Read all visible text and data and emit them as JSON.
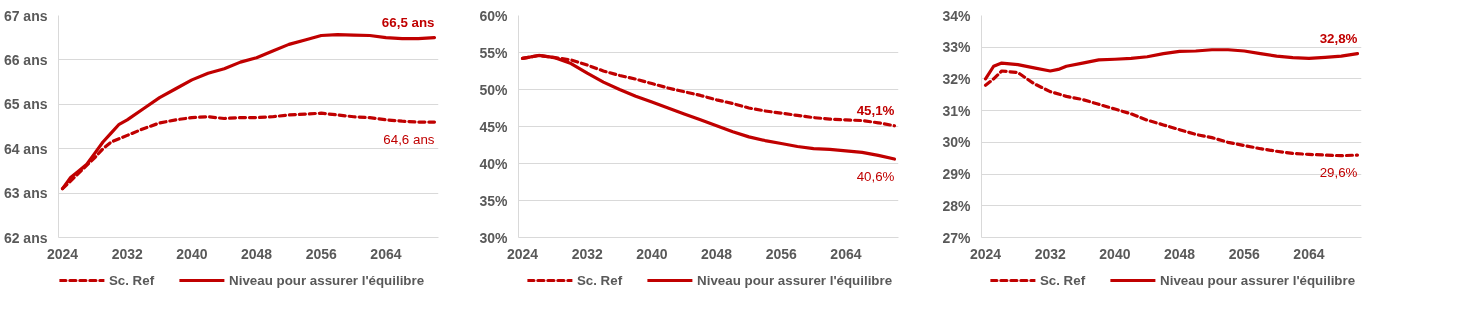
{
  "chart_data": [
    {
      "type": "line",
      "xlim": [
        2023.5,
        2070.5
      ],
      "xticks": [
        2024,
        2032,
        2040,
        2048,
        2056,
        2064
      ],
      "ylim": [
        62,
        67
      ],
      "yticks": [
        {
          "value": 62,
          "label": "62 ans"
        },
        {
          "value": 63,
          "label": "63 ans"
        },
        {
          "value": 64,
          "label": "64 ans"
        },
        {
          "value": 65,
          "label": "65 ans"
        },
        {
          "value": 66,
          "label": "66 ans"
        },
        {
          "value": 67,
          "label": "67 ans"
        }
      ],
      "grid": "y",
      "legend": "bottom",
      "series": [
        {
          "name": "Sc. Ref",
          "color": "#c00000",
          "line_style": "dashed",
          "x": [
            2024,
            2026,
            2028,
            2029,
            2030,
            2032,
            2034,
            2036,
            2038,
            2040,
            2042,
            2044,
            2046,
            2048,
            2050,
            2052,
            2054,
            2056,
            2058,
            2060,
            2062,
            2064,
            2066,
            2068,
            2070
          ],
          "values": [
            63.1,
            63.45,
            63.8,
            64.0,
            64.15,
            64.3,
            64.45,
            64.58,
            64.65,
            64.7,
            64.72,
            64.68,
            64.7,
            64.7,
            64.72,
            64.76,
            64.78,
            64.8,
            64.76,
            64.72,
            64.7,
            64.65,
            64.62,
            64.6,
            64.6
          ],
          "value_labels": [
            null,
            null,
            null,
            null,
            null,
            null,
            null,
            null,
            null,
            null,
            null,
            null,
            null,
            null,
            null,
            null,
            null,
            null,
            null,
            null,
            null,
            null,
            null,
            null,
            "64,6 ans"
          ]
        },
        {
          "name": "Niveau pour assurer l'équilibre",
          "color": "#c00000",
          "line_style": "solid",
          "x": [
            2024,
            2025,
            2026,
            2027,
            2028,
            2029,
            2030,
            2031,
            2032,
            2034,
            2036,
            2038,
            2040,
            2042,
            2044,
            2046,
            2048,
            2050,
            2052,
            2054,
            2056,
            2058,
            2060,
            2062,
            2064,
            2066,
            2068,
            2070
          ],
          "values": [
            63.1,
            63.35,
            63.5,
            63.65,
            63.9,
            64.15,
            64.35,
            64.55,
            64.65,
            64.9,
            65.15,
            65.35,
            65.55,
            65.7,
            65.8,
            65.95,
            66.05,
            66.2,
            66.35,
            66.45,
            66.55,
            66.57,
            66.56,
            66.55,
            66.5,
            66.48,
            66.48,
            66.5
          ],
          "value_labels": [
            null,
            null,
            null,
            null,
            null,
            null,
            null,
            null,
            null,
            null,
            null,
            null,
            null,
            null,
            null,
            null,
            null,
            null,
            null,
            null,
            null,
            null,
            null,
            null,
            null,
            null,
            null,
            "66,5 ans"
          ]
        }
      ]
    },
    {
      "type": "line",
      "xlim": [
        2023.5,
        2070.5
      ],
      "xticks": [
        2024,
        2032,
        2040,
        2048,
        2056,
        2064
      ],
      "ylim": [
        30,
        60
      ],
      "yticks": [
        {
          "value": 30,
          "label": "30%"
        },
        {
          "value": 35,
          "label": "35%"
        },
        {
          "value": 40,
          "label": "40%"
        },
        {
          "value": 45,
          "label": "45%"
        },
        {
          "value": 50,
          "label": "50%"
        },
        {
          "value": 55,
          "label": "55%"
        },
        {
          "value": 60,
          "label": "60%"
        }
      ],
      "grid": "y",
      "legend": "bottom",
      "series": [
        {
          "name": "Sc. Ref",
          "color": "#c00000",
          "line_style": "dashed",
          "x": [
            2024,
            2026,
            2028,
            2030,
            2032,
            2034,
            2036,
            2038,
            2040,
            2042,
            2044,
            2046,
            2048,
            2050,
            2052,
            2054,
            2056,
            2058,
            2060,
            2062,
            2064,
            2066,
            2068,
            2070
          ],
          "values": [
            54.2,
            54.6,
            54.3,
            54.0,
            53.3,
            52.5,
            51.9,
            51.4,
            50.8,
            50.2,
            49.7,
            49.2,
            48.6,
            48.1,
            47.5,
            47.1,
            46.8,
            46.5,
            46.2,
            46.0,
            45.9,
            45.8,
            45.5,
            45.1
          ],
          "value_labels": [
            null,
            null,
            null,
            null,
            null,
            null,
            null,
            null,
            null,
            null,
            null,
            null,
            null,
            null,
            null,
            null,
            null,
            null,
            null,
            null,
            null,
            null,
            null,
            "45,1%"
          ]
        },
        {
          "name": "Niveau pour assurer l'équilibre",
          "color": "#c00000",
          "line_style": "solid",
          "x": [
            2024,
            2026,
            2028,
            2030,
            2032,
            2034,
            2036,
            2038,
            2040,
            2042,
            2044,
            2046,
            2048,
            2050,
            2052,
            2054,
            2056,
            2058,
            2060,
            2062,
            2064,
            2066,
            2068,
            2070
          ],
          "values": [
            54.2,
            54.6,
            54.3,
            53.5,
            52.2,
            51.0,
            50.0,
            49.1,
            48.3,
            47.5,
            46.7,
            45.9,
            45.1,
            44.3,
            43.6,
            43.1,
            42.7,
            42.3,
            42.0,
            41.9,
            41.7,
            41.5,
            41.1,
            40.6
          ],
          "value_labels": [
            null,
            null,
            null,
            null,
            null,
            null,
            null,
            null,
            null,
            null,
            null,
            null,
            null,
            null,
            null,
            null,
            null,
            null,
            null,
            null,
            null,
            null,
            null,
            "40,6%"
          ]
        }
      ]
    },
    {
      "type": "line",
      "xlim": [
        2023.5,
        2070.5
      ],
      "xticks": [
        2024,
        2032,
        2040,
        2048,
        2056,
        2064
      ],
      "ylim": [
        27,
        34
      ],
      "yticks": [
        {
          "value": 27,
          "label": "27%"
        },
        {
          "value": 28,
          "label": "28%"
        },
        {
          "value": 29,
          "label": "29%"
        },
        {
          "value": 30,
          "label": "30%"
        },
        {
          "value": 31,
          "label": "31%"
        },
        {
          "value": 32,
          "label": "32%"
        },
        {
          "value": 33,
          "label": "33%"
        },
        {
          "value": 34,
          "label": "34%"
        }
      ],
      "grid": "y",
      "legend": "bottom",
      "series": [
        {
          "name": "Sc. Ref",
          "color": "#c00000",
          "line_style": "dashed",
          "x": [
            2024,
            2025,
            2026,
            2028,
            2030,
            2032,
            2034,
            2036,
            2038,
            2040,
            2042,
            2044,
            2046,
            2048,
            2050,
            2052,
            2054,
            2056,
            2058,
            2060,
            2062,
            2064,
            2066,
            2068,
            2070
          ],
          "values": [
            31.8,
            32.0,
            32.25,
            32.2,
            31.85,
            31.6,
            31.45,
            31.35,
            31.2,
            31.05,
            30.9,
            30.7,
            30.55,
            30.4,
            30.25,
            30.15,
            30.0,
            29.9,
            29.8,
            29.72,
            29.65,
            29.62,
            29.6,
            29.58,
            29.6
          ],
          "value_labels": [
            null,
            null,
            null,
            null,
            null,
            null,
            null,
            null,
            null,
            null,
            null,
            null,
            null,
            null,
            null,
            null,
            null,
            null,
            null,
            null,
            null,
            null,
            null,
            null,
            "29,6%"
          ]
        },
        {
          "name": "Niveau pour assurer l'équilibre",
          "color": "#c00000",
          "line_style": "solid",
          "x": [
            2024,
            2025,
            2026,
            2028,
            2030,
            2032,
            2033,
            2034,
            2036,
            2038,
            2040,
            2042,
            2044,
            2046,
            2048,
            2050,
            2052,
            2054,
            2056,
            2058,
            2060,
            2062,
            2064,
            2066,
            2068,
            2070
          ],
          "values": [
            32.0,
            32.4,
            32.5,
            32.45,
            32.35,
            32.25,
            32.3,
            32.4,
            32.5,
            32.6,
            32.62,
            32.65,
            32.7,
            32.8,
            32.87,
            32.88,
            32.92,
            32.92,
            32.88,
            32.8,
            32.72,
            32.67,
            32.65,
            32.68,
            32.72,
            32.8
          ],
          "value_labels": [
            null,
            null,
            null,
            null,
            null,
            null,
            null,
            null,
            null,
            null,
            null,
            null,
            null,
            null,
            null,
            null,
            null,
            null,
            null,
            null,
            null,
            null,
            null,
            null,
            null,
            "32,8%"
          ]
        }
      ]
    }
  ]
}
